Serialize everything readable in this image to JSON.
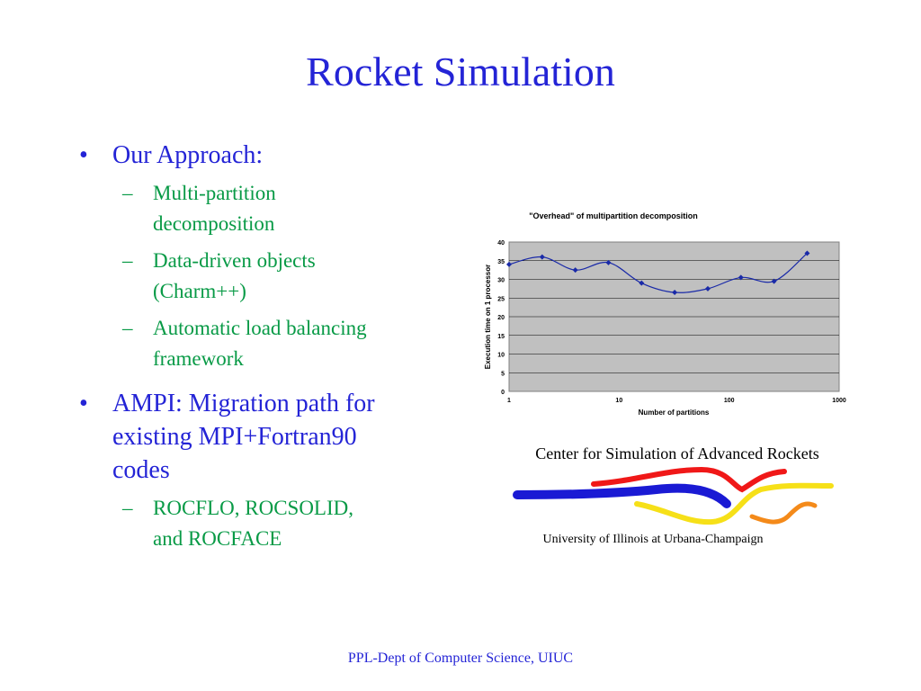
{
  "slide": {
    "title": "Rocket Simulation",
    "footer": "PPL-Dept of Computer Science, UIUC",
    "bullet_glyph": "•",
    "dash_glyph": "–"
  },
  "bullets": [
    {
      "lines": [
        "Our Approach:"
      ],
      "sub": [
        {
          "lines": [
            "Multi-partition",
            "decomposition"
          ]
        },
        {
          "lines": [
            "Data-driven objects",
            "(Charm++)"
          ]
        },
        {
          "lines": [
            "Automatic load balancing",
            "framework"
          ]
        }
      ]
    },
    {
      "lines": [
        "AMPI: Migration path for",
        "existing MPI+Fortran90",
        "codes"
      ],
      "sub": [
        {
          "lines": [
            "ROCFLO, ROCSOLID,",
            "and ROCFACE"
          ]
        }
      ]
    }
  ],
  "chart_data": {
    "type": "line",
    "title": "\"Overhead\" of multipartition decomposition",
    "xlabel": "Number of partitions",
    "ylabel": "Execution time on 1 processor",
    "x_scale": "log",
    "xlim": [
      1,
      1000
    ],
    "ylim": [
      0,
      40
    ],
    "x_ticks": [
      1,
      10,
      100,
      1000
    ],
    "y_ticks": [
      0,
      5,
      10,
      15,
      20,
      25,
      30,
      35,
      40
    ],
    "grid": true,
    "plot_bg": "#c0c0c0",
    "series_color": "#1a2aa8",
    "series": [
      {
        "x": [
          1,
          2,
          4,
          8,
          16,
          32,
          64,
          128,
          256,
          512
        ],
        "values": [
          34,
          36,
          32.5,
          34.5,
          29,
          26.5,
          27.5,
          30.5,
          29.5,
          37
        ]
      }
    ]
  },
  "logo": {
    "top_text": "Center for Simulation of Advanced Rockets",
    "bottom_text": "University of Illinois at Urbana-Champaign",
    "colors": {
      "blue": "#1a1ad4",
      "red": "#f01818",
      "yellow": "#f6e018",
      "orange": "#f48a1a"
    }
  },
  "colors": {
    "title": "#2424d6",
    "subtext": "#089a46"
  }
}
